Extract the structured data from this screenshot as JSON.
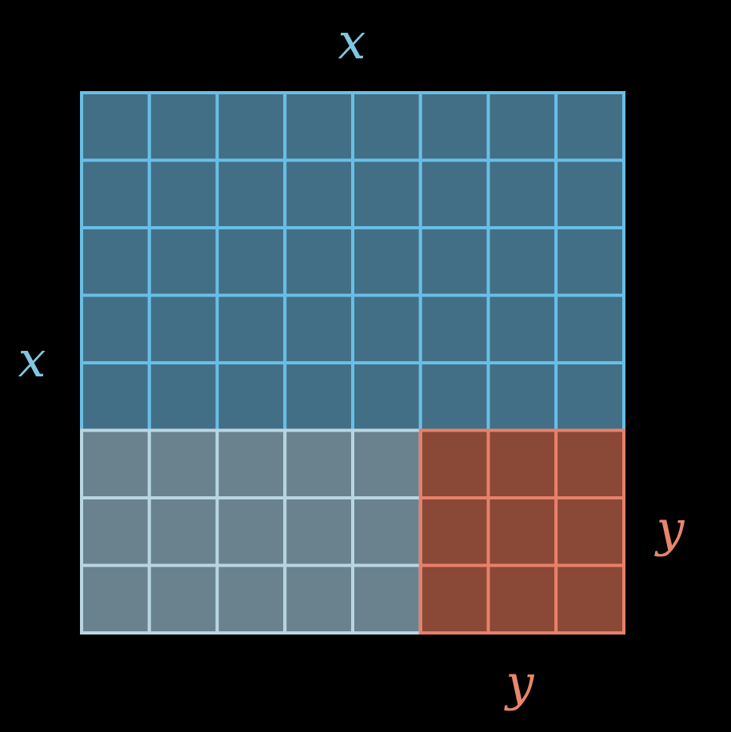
{
  "labels": {
    "top_x": "x",
    "left_x": "x",
    "right_y": "y",
    "bottom_y": "y"
  },
  "grid": {
    "columns": 8,
    "rows": 8,
    "x_cells": 5,
    "y_cells": 3
  },
  "colors": {
    "background": "#000000",
    "x_color": "#7fc6e4",
    "y_color": "#e8876a",
    "x_squared_fill": "#426f86",
    "xy_fill": "#6a828d",
    "y_squared_fill": "#8a4836",
    "x_squared_line": "#68bfe6",
    "xy_line": "#b8d6e2",
    "y_squared_line": "#e8806a"
  }
}
